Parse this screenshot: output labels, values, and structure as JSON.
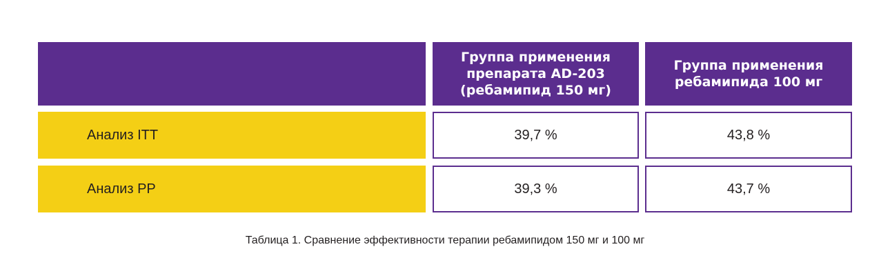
{
  "table": {
    "header": {
      "col1": "Группа применения\nпрепарата AD-203\n(ребамипид 150 мг)",
      "col2": "Группа применения\nребамипида 100 мг"
    },
    "rows": [
      {
        "label": "Анализ ITT",
        "col1": "39,7 %",
        "col2": "43,8 %"
      },
      {
        "label": "Анализ PP",
        "col1": "39,3 %",
        "col2": "43,7 %"
      }
    ]
  },
  "caption": "Таблица 1. Сравнение эффективности терапии ребамипидом 150 мг и 100 мг",
  "colors": {
    "header_bg": "#5b2d8e",
    "row_label_bg": "#f4cf15",
    "text": "#231f20"
  }
}
